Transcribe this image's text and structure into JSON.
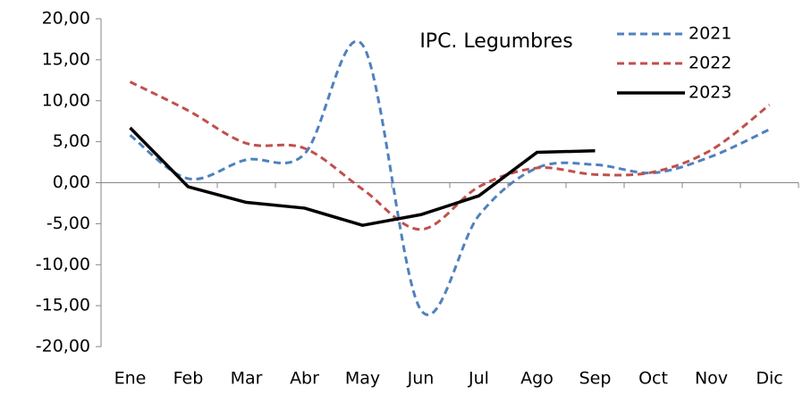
{
  "chart_data": {
    "type": "line",
    "title": "IPC. Legumbres",
    "categories": [
      "Ene",
      "Feb",
      "Mar",
      "Abr",
      "May",
      "Jun",
      "Jul",
      "Ago",
      "Sep",
      "Oct",
      "Nov",
      "Dic"
    ],
    "series": [
      {
        "name": "2021",
        "color": "#4f81bd",
        "line_style": "dashed",
        "smooth": true,
        "values": [
          5.8,
          0.5,
          2.8,
          3.5,
          16.8,
          -15.5,
          -4.0,
          1.8,
          2.2,
          1.2,
          3.2,
          6.5
        ]
      },
      {
        "name": "2022",
        "color": "#c0504d",
        "line_style": "dashed",
        "smooth": true,
        "values": [
          12.3,
          8.8,
          4.8,
          4.2,
          -0.8,
          -5.7,
          -0.5,
          1.8,
          1.0,
          1.3,
          4.0,
          9.5
        ]
      },
      {
        "name": "2023",
        "color": "#000000",
        "line_style": "solid",
        "smooth": false,
        "values": [
          6.7,
          -0.5,
          -2.4,
          -3.1,
          -5.2,
          -3.9,
          -1.6,
          3.7,
          3.9,
          null,
          null,
          null
        ]
      }
    ],
    "ylim": [
      -20,
      20
    ],
    "yticks": [
      {
        "value": -20,
        "label": "-20,00"
      },
      {
        "value": -15,
        "label": "-15,00"
      },
      {
        "value": -10,
        "label": "-10,00"
      },
      {
        "value": -5,
        "label": "-5,00"
      },
      {
        "value": 0,
        "label": "0,00"
      },
      {
        "value": 5,
        "label": "5,00"
      },
      {
        "value": 10,
        "label": "10,00"
      },
      {
        "value": 15,
        "label": "15,00"
      },
      {
        "value": 20,
        "label": "20,00"
      }
    ],
    "grid": false,
    "legend": "top-right"
  }
}
